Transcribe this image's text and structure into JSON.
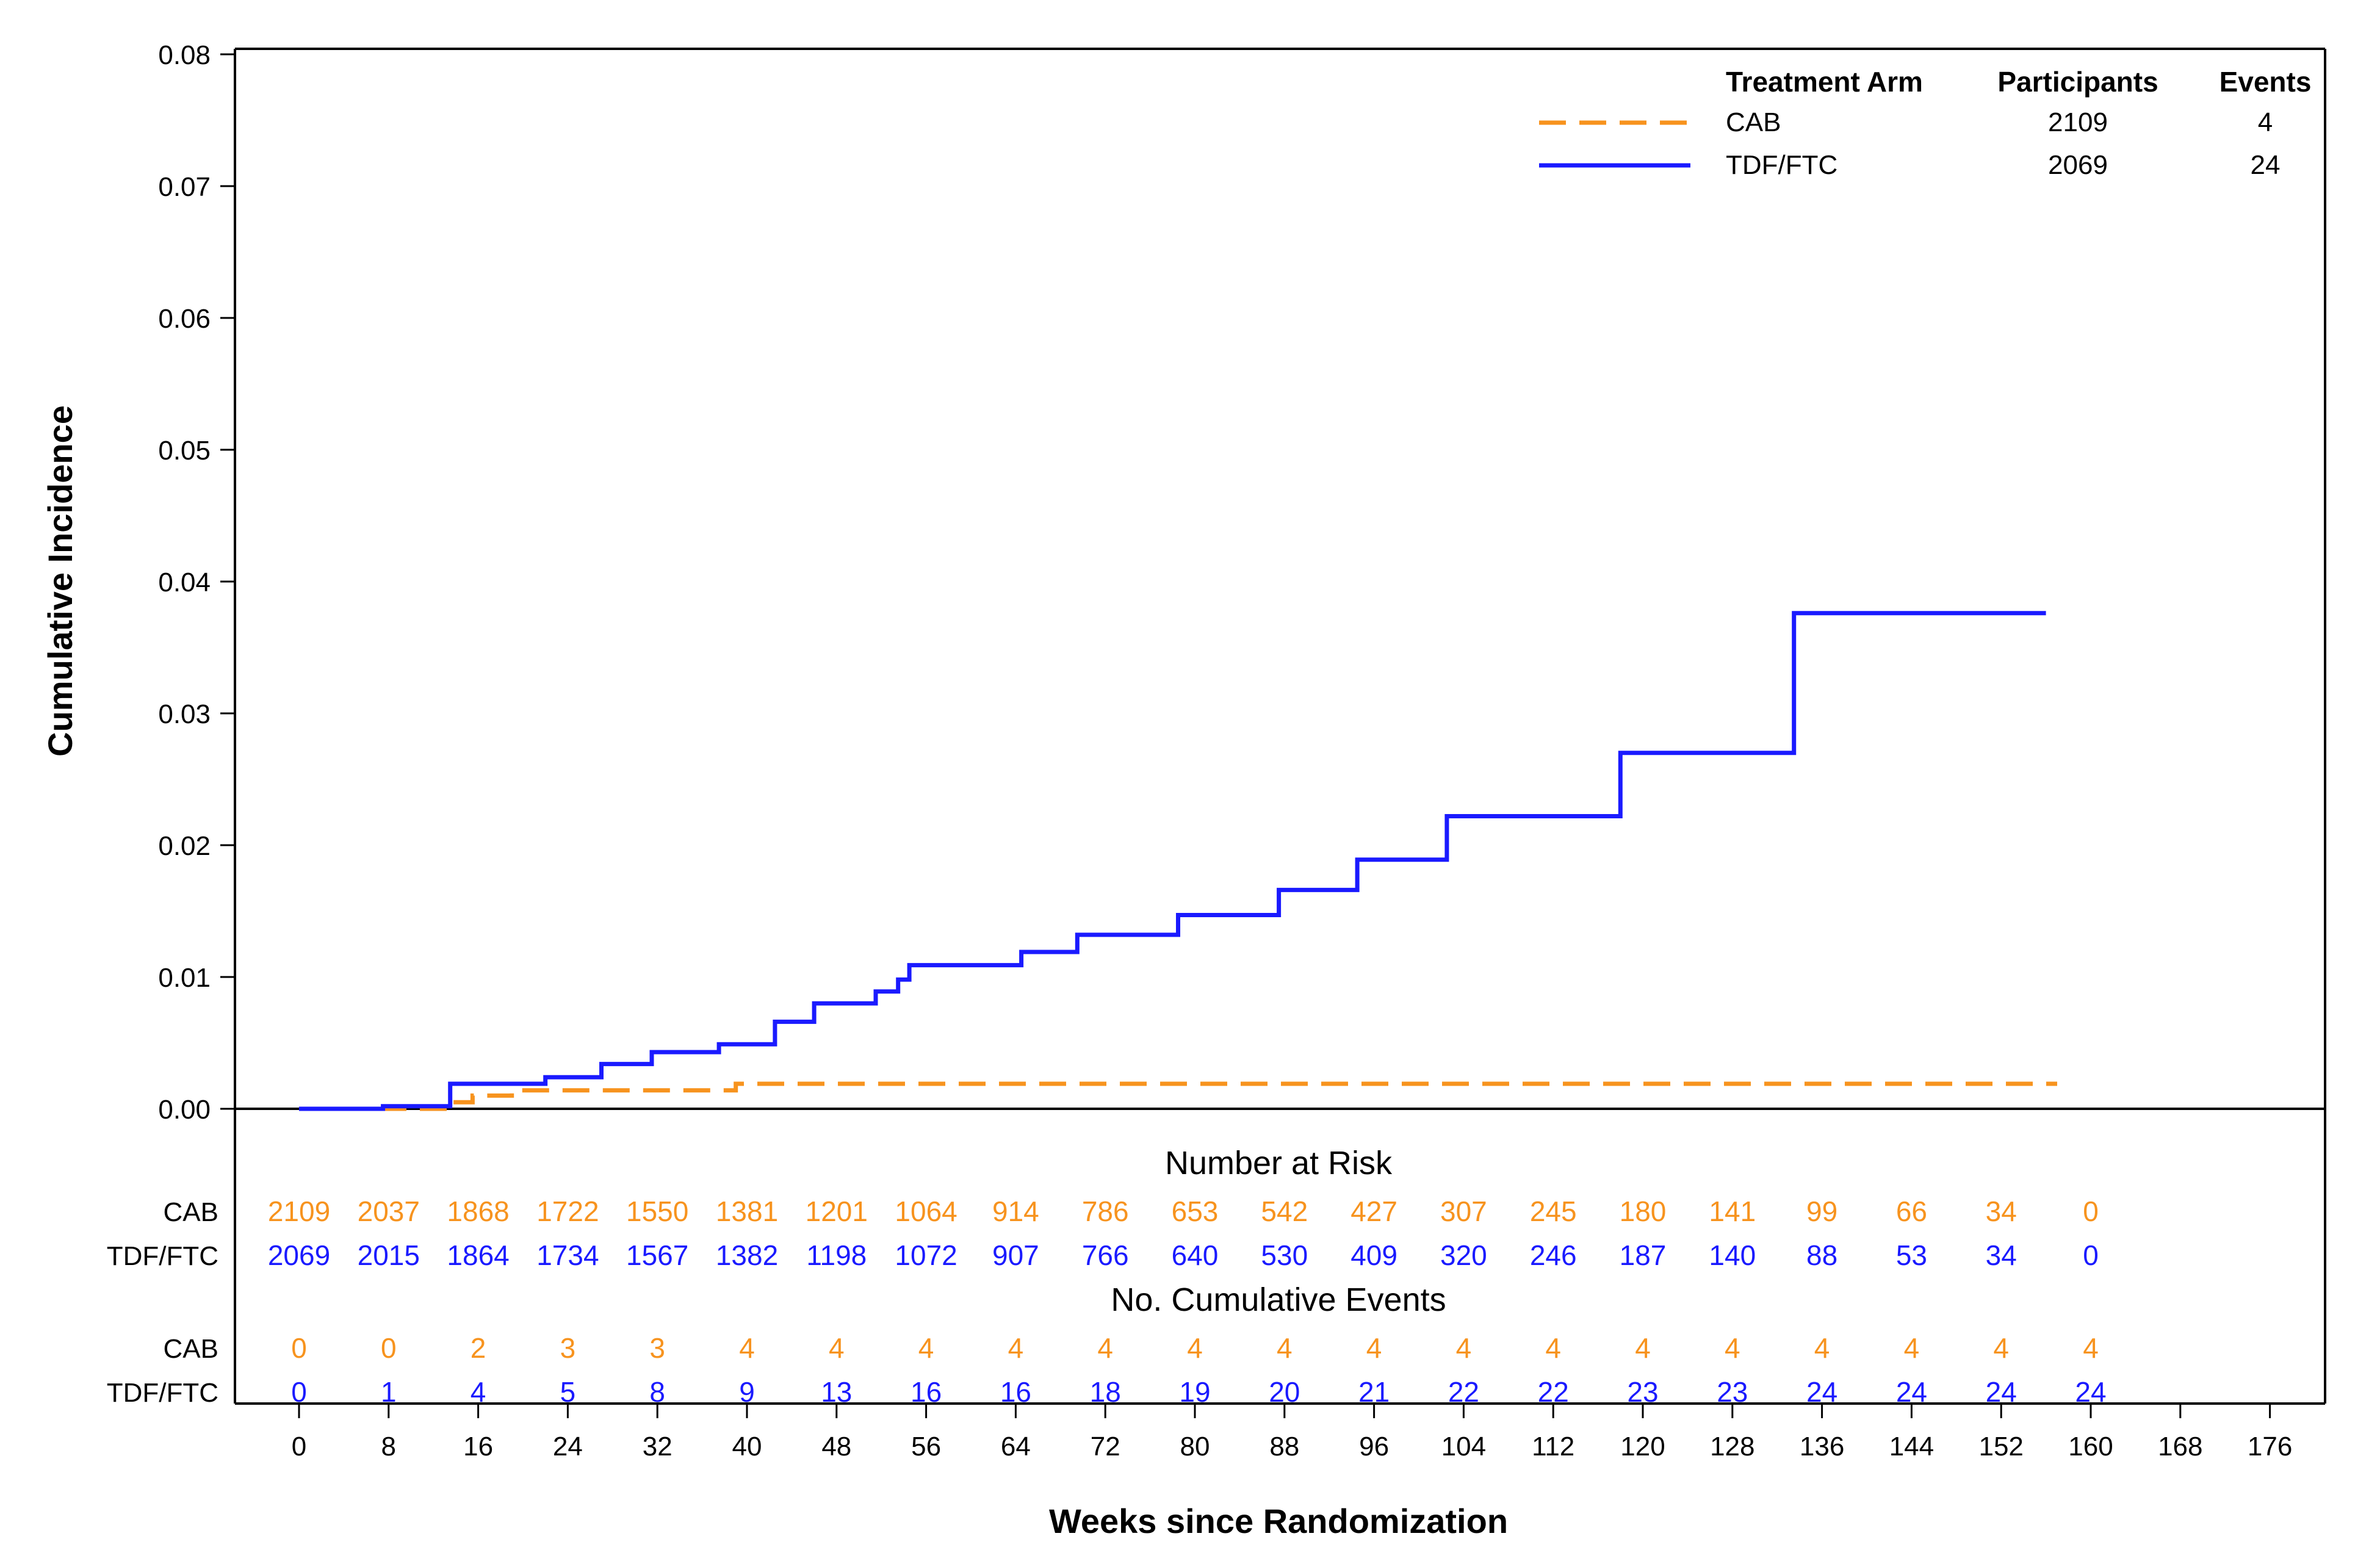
{
  "chart_data": {
    "type": "line",
    "subtype": "step (cumulative incidence)",
    "xlabel": "Weeks since Randomization",
    "ylabel": "Cumulative Incidence",
    "xlim": [
      0,
      176
    ],
    "ylim": [
      0,
      0.08
    ],
    "x_ticks": [
      0,
      8,
      16,
      24,
      32,
      40,
      48,
      56,
      64,
      72,
      80,
      88,
      96,
      104,
      112,
      120,
      128,
      136,
      144,
      152,
      160,
      168,
      176
    ],
    "y_ticks": [
      "0.00",
      "0.01",
      "0.02",
      "0.03",
      "0.04",
      "0.05",
      "0.06",
      "0.07",
      "0.08"
    ],
    "legend": {
      "placement": "top-right",
      "headers": {
        "arm": "Treatment Arm",
        "participants": "Participants",
        "events": "Events"
      },
      "rows": [
        {
          "name": "CAB",
          "participants": "2109",
          "events": "4",
          "color": "#f7931e",
          "dash": "dashed"
        },
        {
          "name": "TDF/FTC",
          "participants": "2069",
          "events": "24",
          "color": "#1a1aff",
          "dash": "solid"
        }
      ]
    },
    "series": [
      {
        "name": "CAB",
        "color": "#f7931e",
        "line_style": "dashed",
        "points": [
          [
            0,
            0
          ],
          [
            13.5,
            0
          ],
          [
            13.5,
            0.0005
          ],
          [
            15.5,
            0.0005
          ],
          [
            15.5,
            0.001
          ],
          [
            19,
            0.001
          ],
          [
            19,
            0.0014
          ],
          [
            39,
            0.0014
          ],
          [
            39,
            0.0019
          ],
          [
            157,
            0.0019
          ]
        ]
      },
      {
        "name": "TDF/FTC",
        "color": "#1a1aff",
        "line_style": "solid",
        "points": [
          [
            0,
            0
          ],
          [
            7.5,
            0
          ],
          [
            7.5,
            0.0002
          ],
          [
            13.5,
            0.0002
          ],
          [
            13.5,
            0.0019
          ],
          [
            22,
            0.0019
          ],
          [
            22,
            0.0024
          ],
          [
            27,
            0.0024
          ],
          [
            27,
            0.0034
          ],
          [
            31.5,
            0.0034
          ],
          [
            31.5,
            0.0043
          ],
          [
            37.5,
            0.0043
          ],
          [
            37.5,
            0.0049
          ],
          [
            42.5,
            0.0049
          ],
          [
            42.5,
            0.0066
          ],
          [
            46,
            0.0066
          ],
          [
            46,
            0.008
          ],
          [
            51.5,
            0.008
          ],
          [
            51.5,
            0.0089
          ],
          [
            53.5,
            0.0089
          ],
          [
            53.5,
            0.0098
          ],
          [
            54.5,
            0.0098
          ],
          [
            54.5,
            0.0109
          ],
          [
            64.5,
            0.0109
          ],
          [
            64.5,
            0.0119
          ],
          [
            69.5,
            0.0119
          ],
          [
            69.5,
            0.0132
          ],
          [
            78.5,
            0.0132
          ],
          [
            78.5,
            0.0147
          ],
          [
            87.5,
            0.0147
          ],
          [
            87.5,
            0.0166
          ],
          [
            94.5,
            0.0166
          ],
          [
            94.5,
            0.0189
          ],
          [
            102.5,
            0.0189
          ],
          [
            102.5,
            0.0222
          ],
          [
            118,
            0.0222
          ],
          [
            118,
            0.027
          ],
          [
            133.5,
            0.027
          ],
          [
            133.5,
            0.0376
          ],
          [
            156,
            0.0376
          ]
        ]
      }
    ],
    "risk_table": {
      "at_risk_title": "Number at Risk",
      "events_title": "No. Cumulative Events",
      "weeks": [
        0,
        8,
        16,
        24,
        32,
        40,
        48,
        56,
        64,
        72,
        80,
        88,
        96,
        104,
        112,
        120,
        128,
        136,
        144,
        152,
        160
      ],
      "at_risk": [
        {
          "name": "CAB",
          "color": "#f7931e",
          "values": [
            "2109",
            "2037",
            "1868",
            "1722",
            "1550",
            "1381",
            "1201",
            "1064",
            "914",
            "786",
            "653",
            "542",
            "427",
            "307",
            "245",
            "180",
            "141",
            "99",
            "66",
            "34",
            "0"
          ]
        },
        {
          "name": "TDF/FTC",
          "color": "#1a1aff",
          "values": [
            "2069",
            "2015",
            "1864",
            "1734",
            "1567",
            "1382",
            "1198",
            "1072",
            "907",
            "766",
            "640",
            "530",
            "409",
            "320",
            "246",
            "187",
            "140",
            "88",
            "53",
            "34",
            "0"
          ]
        }
      ],
      "cumulative_events": [
        {
          "name": "CAB",
          "color": "#f7931e",
          "values": [
            "0",
            "0",
            "2",
            "3",
            "3",
            "4",
            "4",
            "4",
            "4",
            "4",
            "4",
            "4",
            "4",
            "4",
            "4",
            "4",
            "4",
            "4",
            "4",
            "4",
            "4"
          ]
        },
        {
          "name": "TDF/FTC",
          "color": "#1a1aff",
          "values": [
            "0",
            "1",
            "4",
            "5",
            "8",
            "9",
            "13",
            "16",
            "16",
            "18",
            "19",
            "20",
            "21",
            "22",
            "22",
            "23",
            "23",
            "24",
            "24",
            "24",
            "24"
          ]
        }
      ]
    }
  }
}
